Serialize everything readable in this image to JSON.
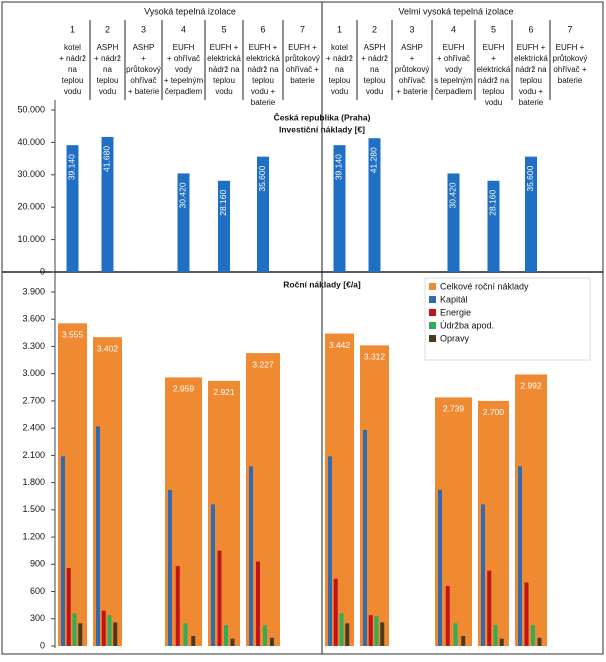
{
  "header": {
    "groups": [
      "Vysoká tepelná izolace",
      "Velmi vysoká tepelná izolace"
    ],
    "columns": [
      {
        "number": 1,
        "lines": [
          "kotel",
          "+ nádrž",
          "na",
          "teplou",
          "vodu"
        ]
      },
      {
        "number": 2,
        "lines": [
          "ASPH",
          "+ nádrž",
          "na",
          "teplou",
          "vodu"
        ]
      },
      {
        "number": 3,
        "lines": [
          "ASHP",
          "+",
          "průtokový",
          "ohřívač",
          "+ baterie"
        ]
      },
      {
        "number": 4,
        "lines": [
          "EUFH",
          "+ ohřívač",
          "vody",
          "+ tepelným",
          "čerpadlem"
        ]
      },
      {
        "number": 5,
        "lines": [
          "EUFH +",
          "elektrická",
          "nádrž na",
          "teplou",
          "vodu"
        ]
      },
      {
        "number": 6,
        "lines": [
          "EUFH +",
          "elektrická",
          "nádrž na",
          "teplou",
          "vodu +",
          "baterie"
        ]
      },
      {
        "number": 7,
        "lines": [
          "EUFH +",
          "průtokový",
          "ohřívač +",
          "baterie"
        ]
      },
      {
        "number": 1,
        "lines": [
          "kotel",
          "+ nádrž",
          "na",
          "teplou",
          "vodu"
        ]
      },
      {
        "number": 2,
        "lines": [
          "ASPH",
          "+ nádrž",
          "na",
          "teplou",
          "vodu"
        ]
      },
      {
        "number": 3,
        "lines": [
          "ASHP",
          "+",
          "průtokový",
          "ohřívač",
          "+ baterie"
        ]
      },
      {
        "number": 4,
        "lines": [
          "EUFH",
          "+ ohřívač",
          "vody",
          "s tepelným",
          "čerpadlem"
        ]
      },
      {
        "number": 5,
        "lines": [
          "EUFH",
          "+",
          "elektrická",
          "nádrž na",
          "teplou",
          "vodu"
        ]
      },
      {
        "number": 6,
        "lines": [
          "EUFH +",
          "elektrická",
          "nádrž na",
          "teplou",
          "vodu +",
          "baterie"
        ]
      },
      {
        "number": 7,
        "lines": [
          "EUFH +",
          "průtokový",
          "ohřívač +",
          "baterie"
        ]
      }
    ]
  },
  "chart_data": [
    {
      "type": "bar",
      "title": [
        "Česká republika (Praha)",
        "Investiční náklady [€]"
      ],
      "color": "#1f6fc5",
      "values": [
        39140,
        41680,
        null,
        30420,
        28160,
        35600,
        null,
        39140,
        41280,
        null,
        30420,
        28160,
        35600,
        null
      ],
      "value_labels": [
        "39.140",
        "41.680",
        null,
        "30.420",
        "28.160",
        "35.600",
        null,
        "39.140",
        "41.280",
        null,
        "30.420",
        "28.160",
        "35.600",
        null
      ],
      "ylim": [
        0,
        50000
      ],
      "yticks": [
        0,
        {
          "value": 10000,
          "label": "10.000"
        },
        {
          "value": 20000,
          "label": "20.000"
        },
        {
          "value": 30000,
          "label": "30.000"
        },
        {
          "value": 40000,
          "label": "40.000"
        },
        {
          "value": 50000,
          "label": "50.000"
        }
      ]
    },
    {
      "type": "grouped-bar",
      "title": "Roční náklady [€/a]",
      "series": [
        {
          "name": "Celkové roční náklady",
          "color": "#ef8a33",
          "values": [
            3555,
            3402,
            null,
            2959,
            2921,
            3227,
            null,
            3442,
            3312,
            null,
            2739,
            2700,
            2992,
            null
          ],
          "value_labels": [
            "3.555",
            "3.402",
            null,
            "2.959",
            "2.921",
            "3.227",
            null,
            "3.442",
            "3.312",
            null,
            "2.739",
            "2.700",
            "2.992",
            null
          ]
        },
        {
          "name": "Kapitál",
          "color": "#2f6bb0",
          "values": [
            2090,
            2420,
            null,
            1720,
            1560,
            1980,
            null,
            2090,
            2380,
            null,
            1720,
            1560,
            1980,
            null
          ]
        },
        {
          "name": "Energie",
          "color": "#c0141b",
          "values": [
            860,
            390,
            null,
            880,
            1050,
            930,
            null,
            740,
            340,
            null,
            660,
            830,
            700,
            null
          ]
        },
        {
          "name": "Údržba apod.",
          "color": "#2fae5a",
          "values": [
            360,
            340,
            null,
            250,
            230,
            230,
            null,
            360,
            330,
            null,
            250,
            230,
            230,
            null
          ]
        },
        {
          "name": "Opravy",
          "color": "#4a3a22",
          "values": [
            250,
            260,
            null,
            110,
            80,
            90,
            null,
            250,
            260,
            null,
            110,
            80,
            90,
            null
          ]
        }
      ],
      "ylim": [
        0,
        3900
      ],
      "yticks": [
        0,
        300,
        600,
        900,
        {
          "value": 1200,
          "label": "1.200"
        },
        {
          "value": 1500,
          "label": "1.500"
        },
        {
          "value": 1800,
          "label": "1.800"
        },
        {
          "value": 2100,
          "label": "2.100"
        },
        {
          "value": 2400,
          "label": "2.400"
        },
        {
          "value": 2700,
          "label": "2.700"
        },
        {
          "value": 3000,
          "label": "3.000"
        },
        {
          "value": 3300,
          "label": "3.300"
        },
        {
          "value": 3600,
          "label": "3.600"
        },
        {
          "value": 3900,
          "label": "3.900"
        }
      ]
    }
  ]
}
